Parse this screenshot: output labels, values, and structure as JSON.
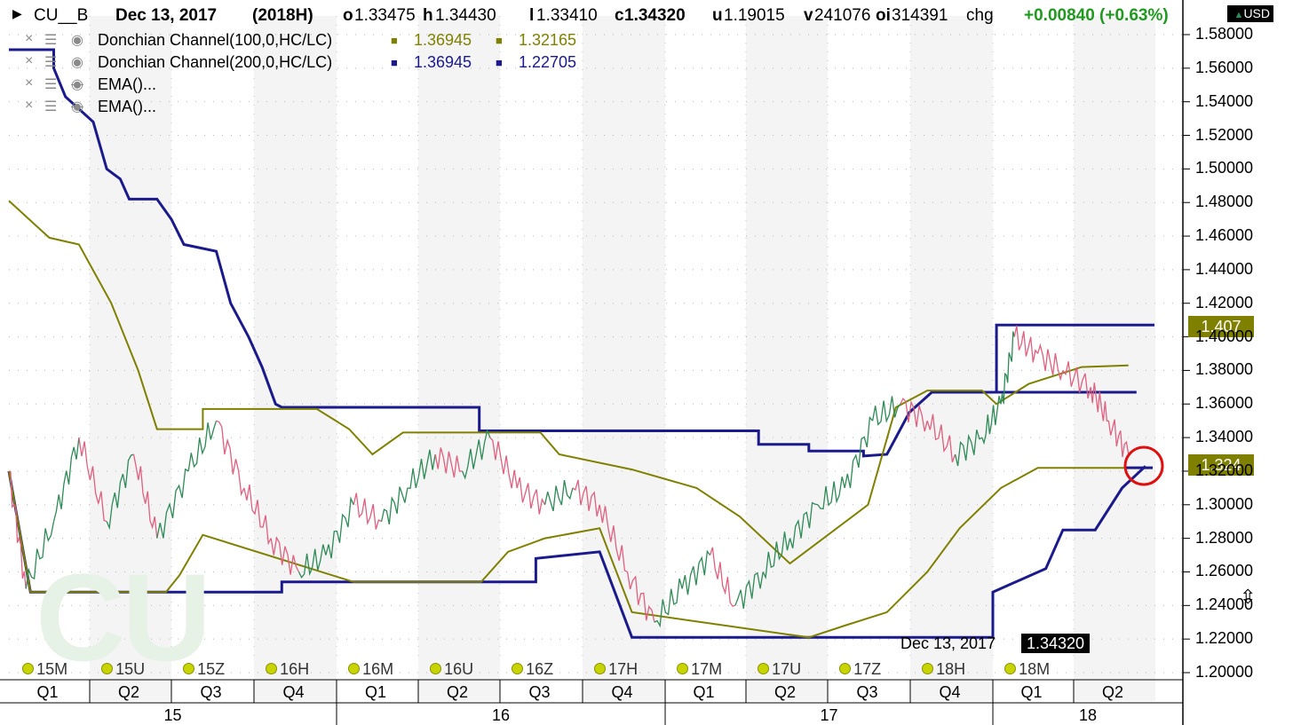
{
  "header": {
    "symbol": "CU__B",
    "date": "Dec 13, 2017",
    "contract": "(2018H)",
    "open_label": "o",
    "open": "1.33475",
    "high_label": "h",
    "high": "1.34430",
    "low_label": "l",
    "low": "1.33410",
    "close_label": "c",
    "close": "1.34320",
    "u_label": "u",
    "u": "1.19015",
    "volume_label": "v",
    "volume": "241076",
    "oi_label": "oi",
    "oi": "314391",
    "chg_label": "chg",
    "chg": "+0.00840 (+0.63%)",
    "currency": "USD"
  },
  "indicators": [
    {
      "name": "Donchian Channel(100,0,HC/LC)",
      "v1": "1.36945",
      "v2": "1.32165",
      "color": "#808000"
    },
    {
      "name": "Donchian Channel(200,0,HC/LC)",
      "v1": "1.36945",
      "v2": "1.22705",
      "color": "#1a1a8c"
    },
    {
      "name": "EMA()...",
      "v1": "",
      "v2": "",
      "color": "#000000"
    },
    {
      "name": "EMA()...",
      "v1": "",
      "v2": "",
      "color": "#000000"
    }
  ],
  "controls": {
    "close": "×",
    "menu": "☰",
    "eye": "◉"
  },
  "watermark": "CU",
  "price_tags": {
    "upper": "1.407",
    "current": "1.324"
  },
  "crosshair": {
    "date": "Dec 13, 2017",
    "value": "1.34320"
  },
  "contract_markers": [
    "15M",
    "15U",
    "15Z",
    "16H",
    "16M",
    "16U",
    "16Z",
    "17H",
    "17M",
    "17U",
    "17Z",
    "18H",
    "18M"
  ],
  "colors": {
    "dc100": "#808000",
    "dc200": "#1a1a8c",
    "up": "#2e8b57",
    "down": "#e06080",
    "circle": "#e01010"
  },
  "chart_data": {
    "type": "line",
    "y_ticks": [
      "1.58000",
      "1.56000",
      "1.54000",
      "1.52000",
      "1.50000",
      "1.48000",
      "1.46000",
      "1.44000",
      "1.42000",
      "1.40000",
      "1.38000",
      "1.36000",
      "1.34000",
      "1.32000",
      "1.30000",
      "1.28000",
      "1.26000",
      "1.24000",
      "1.22000",
      "1.20000"
    ],
    "ylim": [
      1.2,
      1.59
    ],
    "xlim": [
      "2015-01-01",
      "2018-06-30"
    ],
    "x_quarters": [
      "Q1",
      "Q2",
      "Q3",
      "Q4",
      "Q1",
      "Q2",
      "Q3",
      "Q4",
      "Q1",
      "Q2",
      "Q3",
      "Q4",
      "Q1",
      "Q2"
    ],
    "x_years": [
      "15",
      "16",
      "17",
      "18"
    ],
    "series": [
      {
        "name": "Donchian Channel(200,0,HC/LC) upper",
        "points": [
          [
            "2015-01-01",
            1.571
          ],
          [
            "2015-02-20",
            1.571
          ],
          [
            "2015-02-20",
            1.56
          ],
          [
            "2015-03-05",
            1.543
          ],
          [
            "2015-04-05",
            1.528
          ],
          [
            "2015-04-20",
            1.5
          ],
          [
            "2015-05-05",
            1.494
          ],
          [
            "2015-05-15",
            1.482
          ],
          [
            "2015-06-15",
            1.482
          ],
          [
            "2015-07-01",
            1.47
          ],
          [
            "2015-07-15",
            1.455
          ],
          [
            "2015-08-20",
            1.451
          ],
          [
            "2015-09-05",
            1.42
          ],
          [
            "2015-09-25",
            1.4
          ],
          [
            "2015-10-10",
            1.382
          ],
          [
            "2015-10-25",
            1.36
          ],
          [
            "2015-11-01",
            1.358
          ],
          [
            "2016-06-08",
            1.358
          ],
          [
            "2016-06-08",
            1.344
          ],
          [
            "2017-04-15",
            1.344
          ],
          [
            "2017-04-15",
            1.336
          ],
          [
            "2017-06-10",
            1.336
          ],
          [
            "2017-06-10",
            1.332
          ],
          [
            "2017-08-10",
            1.332
          ],
          [
            "2017-08-10",
            1.329
          ],
          [
            "2017-09-05",
            1.33
          ],
          [
            "2017-09-30",
            1.355
          ],
          [
            "2017-10-25",
            1.367
          ],
          [
            "2018-06-10",
            1.367
          ],
          [
            "2018-01-05",
            1.367
          ],
          [
            "2018-01-05",
            1.407
          ],
          [
            "2018-06-30",
            1.407
          ]
        ]
      },
      {
        "name": "Donchian Channel(200,0,HC/LC) lower",
        "points": [
          [
            "2015-01-01",
            1.32
          ],
          [
            "2015-01-25",
            1.248
          ],
          [
            "2015-11-01",
            1.248
          ],
          [
            "2015-11-01",
            1.254
          ],
          [
            "2016-08-10",
            1.254
          ],
          [
            "2016-08-10",
            1.268
          ],
          [
            "2016-10-20",
            1.272
          ],
          [
            "2016-11-25",
            1.221
          ],
          [
            "2018-01-01",
            1.221
          ],
          [
            "2018-01-01",
            1.248
          ],
          [
            "2018-03-01",
            1.262
          ],
          [
            "2018-03-20",
            1.285
          ],
          [
            "2018-04-25",
            1.285
          ],
          [
            "2018-05-25",
            1.31
          ],
          [
            "2018-06-20",
            1.323
          ]
        ]
      },
      {
        "name": "Donchian Channel(100,0,HC/LC) upper",
        "points": [
          [
            "2015-01-01",
            1.481
          ],
          [
            "2015-02-15",
            1.459
          ],
          [
            "2015-03-20",
            1.455
          ],
          [
            "2015-04-25",
            1.42
          ],
          [
            "2015-05-25",
            1.38
          ],
          [
            "2015-06-15",
            1.345
          ],
          [
            "2015-08-05",
            1.345
          ],
          [
            "2015-08-05",
            1.357
          ],
          [
            "2015-12-10",
            1.357
          ],
          [
            "2016-01-15",
            1.345
          ],
          [
            "2016-02-10",
            1.33
          ],
          [
            "2016-03-15",
            1.343
          ],
          [
            "2016-08-15",
            1.343
          ],
          [
            "2016-09-05",
            1.33
          ],
          [
            "2016-11-25",
            1.321
          ],
          [
            "2017-02-05",
            1.31
          ],
          [
            "2017-03-25",
            1.293
          ],
          [
            "2017-05-20",
            1.265
          ],
          [
            "2017-08-15",
            1.3
          ],
          [
            "2017-09-15",
            1.358
          ],
          [
            "2017-10-20",
            1.368
          ],
          [
            "2017-12-20",
            1.368
          ],
          [
            "2018-01-05",
            1.36
          ],
          [
            "2018-02-10",
            1.372
          ],
          [
            "2018-04-10",
            1.382
          ],
          [
            "2018-06-01",
            1.383
          ]
        ]
      },
      {
        "name": "Donchian Channel(100,0,HC/LC) lower",
        "points": [
          [
            "2015-01-01",
            1.32
          ],
          [
            "2015-01-25",
            1.248
          ],
          [
            "2015-06-25",
            1.248
          ],
          [
            "2015-07-10",
            1.258
          ],
          [
            "2015-08-05",
            1.282
          ],
          [
            "2016-01-20",
            1.254
          ],
          [
            "2016-06-10",
            1.254
          ],
          [
            "2016-07-10",
            1.272
          ],
          [
            "2016-08-20",
            1.28
          ],
          [
            "2016-10-20",
            1.286
          ],
          [
            "2016-11-25",
            1.236
          ],
          [
            "2017-06-10",
            1.221
          ],
          [
            "2017-07-20",
            1.228
          ],
          [
            "2017-09-05",
            1.236
          ],
          [
            "2017-10-20",
            1.26
          ],
          [
            "2017-11-25",
            1.286
          ],
          [
            "2018-01-10",
            1.31
          ],
          [
            "2018-02-20",
            1.322
          ],
          [
            "2018-06-01",
            1.322
          ]
        ]
      },
      {
        "name": "Price",
        "points": [
          [
            "2015-01-01",
            1.32
          ],
          [
            "2015-01-20",
            1.25
          ],
          [
            "2015-02-20",
            1.29
          ],
          [
            "2015-03-20",
            1.34
          ],
          [
            "2015-04-20",
            1.29
          ],
          [
            "2015-05-20",
            1.33
          ],
          [
            "2015-06-15",
            1.28
          ],
          [
            "2015-07-20",
            1.32
          ],
          [
            "2015-08-20",
            1.35
          ],
          [
            "2015-09-20",
            1.31
          ],
          [
            "2015-10-20",
            1.28
          ],
          [
            "2015-11-20",
            1.26
          ],
          [
            "2015-12-20",
            1.27
          ],
          [
            "2016-01-20",
            1.3
          ],
          [
            "2016-02-20",
            1.29
          ],
          [
            "2016-03-20",
            1.31
          ],
          [
            "2016-04-20",
            1.33
          ],
          [
            "2016-05-20",
            1.32
          ],
          [
            "2016-06-20",
            1.34
          ],
          [
            "2016-07-20",
            1.31
          ],
          [
            "2016-08-20",
            1.3
          ],
          [
            "2016-09-20",
            1.31
          ],
          [
            "2016-10-20",
            1.3
          ],
          [
            "2016-11-20",
            1.26
          ],
          [
            "2016-12-20",
            1.23
          ],
          [
            "2017-01-20",
            1.25
          ],
          [
            "2017-02-20",
            1.27
          ],
          [
            "2017-03-20",
            1.24
          ],
          [
            "2017-04-20",
            1.26
          ],
          [
            "2017-05-20",
            1.28
          ],
          [
            "2017-06-20",
            1.3
          ],
          [
            "2017-07-20",
            1.31
          ],
          [
            "2017-08-20",
            1.35
          ],
          [
            "2017-09-20",
            1.36
          ],
          [
            "2017-10-20",
            1.35
          ],
          [
            "2017-11-20",
            1.33
          ],
          [
            "2017-12-20",
            1.34
          ],
          [
            "2018-01-10",
            1.36
          ],
          [
            "2018-01-25",
            1.4
          ],
          [
            "2018-02-20",
            1.39
          ],
          [
            "2018-03-20",
            1.38
          ],
          [
            "2018-04-20",
            1.37
          ],
          [
            "2018-05-10",
            1.35
          ],
          [
            "2018-06-01",
            1.33
          ]
        ]
      }
    ]
  }
}
